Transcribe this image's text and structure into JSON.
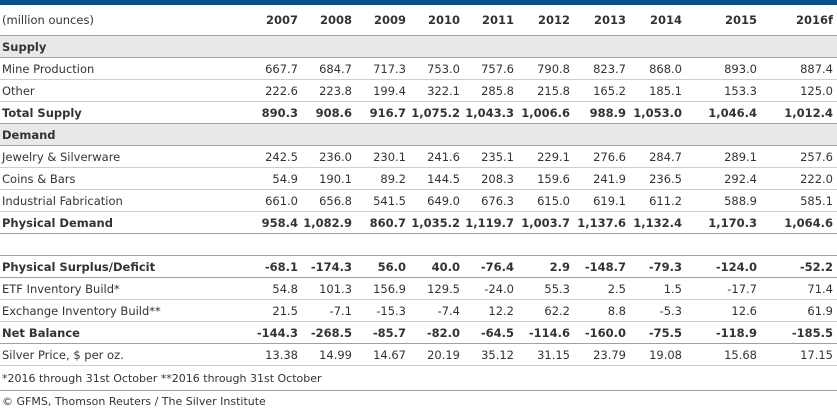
{
  "unit_label": "(million ounces)",
  "years": [
    "2007",
    "2008",
    "2009",
    "2010",
    "2011",
    "2012",
    "2013",
    "2014",
    "2015",
    "2016f"
  ],
  "rows": [
    {
      "type": "section",
      "label": "Supply"
    },
    {
      "type": "row",
      "label": "Mine Production",
      "values": [
        "667.7",
        "684.7",
        "717.3",
        "753.0",
        "757.6",
        "790.8",
        "823.7",
        "868.0",
        "893.0",
        "887.4"
      ]
    },
    {
      "type": "row",
      "label": "Other",
      "values": [
        "222.6",
        "223.8",
        "199.4",
        "322.1",
        "285.8",
        "215.8",
        "165.2",
        "185.1",
        "153.3",
        "125.0"
      ]
    },
    {
      "type": "total",
      "label": "Total Supply",
      "values": [
        "890.3",
        "908.6",
        "916.7",
        "1,075.2",
        "1,043.3",
        "1,006.6",
        "988.9",
        "1,053.0",
        "1,046.4",
        "1,012.4"
      ]
    },
    {
      "type": "section",
      "label": "Demand"
    },
    {
      "type": "row",
      "label": "Jewelry & Silverware",
      "values": [
        "242.5",
        "236.0",
        "230.1",
        "241.6",
        "235.1",
        "229.1",
        "276.6",
        "284.7",
        "289.1",
        "257.6"
      ]
    },
    {
      "type": "row",
      "label": "Coins & Bars",
      "values": [
        "54.9",
        "190.1",
        "89.2",
        "144.5",
        "208.3",
        "159.6",
        "241.9",
        "236.5",
        "292.4",
        "222.0"
      ]
    },
    {
      "type": "row",
      "label": "Industrial Fabrication",
      "values": [
        "661.0",
        "656.8",
        "541.5",
        "649.0",
        "676.3",
        "615.0",
        "619.1",
        "611.2",
        "588.9",
        "585.1"
      ]
    },
    {
      "type": "total",
      "label": "Physical Demand",
      "values": [
        "958.4",
        "1,082.9",
        "860.7",
        "1,035.2",
        "1,119.7",
        "1,003.7",
        "1,137.6",
        "1,132.4",
        "1,170.3",
        "1,064.6"
      ]
    },
    {
      "type": "spacer"
    },
    {
      "type": "total",
      "label": "Physical Surplus/Deficit",
      "values": [
        "-68.1",
        "-174.3",
        "56.0",
        "40.0",
        "-76.4",
        "2.9",
        "-148.7",
        "-79.3",
        "-124.0",
        "-52.2"
      ]
    },
    {
      "type": "row",
      "label": "ETF Inventory Build*",
      "values": [
        "54.8",
        "101.3",
        "156.9",
        "129.5",
        "-24.0",
        "55.3",
        "2.5",
        "1.5",
        "-17.7",
        "71.4"
      ]
    },
    {
      "type": "row",
      "label": "Exchange Inventory Build**",
      "values": [
        "21.5",
        "-7.1",
        "-15.3",
        "-7.4",
        "12.2",
        "62.2",
        "8.8",
        "-5.3",
        "12.6",
        "61.9"
      ]
    },
    {
      "type": "total",
      "label": "Net Balance",
      "values": [
        "-144.3",
        "-268.5",
        "-85.7",
        "-82.0",
        "-64.5",
        "-114.6",
        "-160.0",
        "-75.5",
        "-118.9",
        "-185.5"
      ]
    },
    {
      "type": "row",
      "label": "Silver Price, $ per oz.",
      "values": [
        "13.38",
        "14.99",
        "14.67",
        "20.19",
        "35.12",
        "31.15",
        "23.79",
        "19.08",
        "15.68",
        "17.15"
      ]
    }
  ],
  "footnote": "*2016 through 31st October **2016 through 31st October",
  "source": "© GFMS, Thomson Reuters / The Silver Institute",
  "colors": {
    "topbar": "#0a4f8c",
    "section_bg": "#e8e8e8"
  }
}
